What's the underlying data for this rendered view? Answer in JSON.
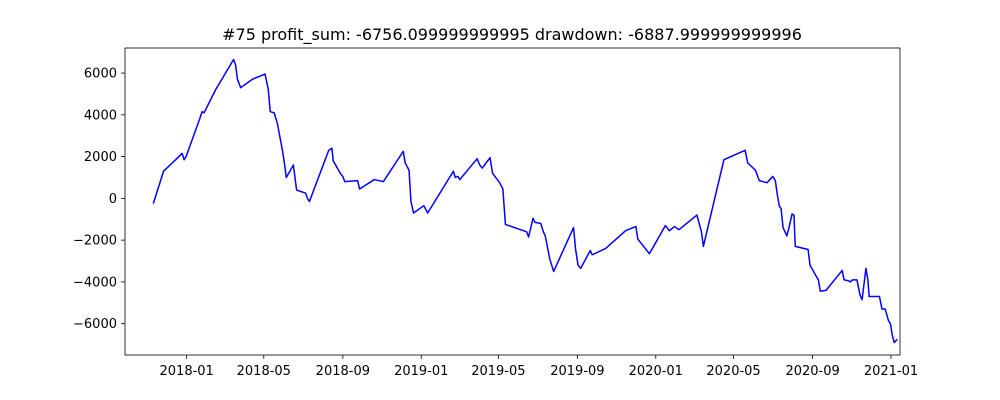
{
  "chart_data": {
    "type": "line",
    "title": "#75   profit_sum: -6756.099999999995 drawdown: -6887.999999999996",
    "xlabel": "",
    "ylabel": "",
    "xlim": [
      "2017-09-27",
      "2021-01-15"
    ],
    "ylim": [
      -7500,
      7200
    ],
    "grid": false,
    "x_ticks": [
      "2018-01",
      "2018-05",
      "2018-09",
      "2019-01",
      "2019-05",
      "2019-09",
      "2020-01",
      "2020-05",
      "2020-09",
      "2021-01"
    ],
    "y_ticks": [
      -6000,
      -4000,
      -2000,
      0,
      2000,
      4000,
      6000
    ],
    "y_tick_labels": [
      "−6000",
      "−4000",
      "−2000",
      "0",
      "2000",
      "4000",
      "6000"
    ],
    "series": [
      {
        "color": "#0000ff",
        "points": [
          [
            "2017-11-10",
            -250
          ],
          [
            "2017-11-26",
            1300
          ],
          [
            "2017-12-25",
            2150
          ],
          [
            "2017-12-28",
            1850
          ],
          [
            "2017-12-31",
            2000
          ],
          [
            "2018-01-20",
            3700
          ],
          [
            "2018-01-25",
            4150
          ],
          [
            "2018-01-28",
            4100
          ],
          [
            "2018-02-15",
            5200
          ],
          [
            "2018-03-15",
            6650
          ],
          [
            "2018-03-18",
            6400
          ],
          [
            "2018-03-21",
            5700
          ],
          [
            "2018-03-26",
            5300
          ],
          [
            "2018-04-13",
            5700
          ],
          [
            "2018-05-03",
            5950
          ],
          [
            "2018-05-08",
            5200
          ],
          [
            "2018-05-11",
            4150
          ],
          [
            "2018-05-17",
            4100
          ],
          [
            "2018-05-22",
            3600
          ],
          [
            "2018-05-30",
            2300
          ],
          [
            "2018-06-02",
            1700
          ],
          [
            "2018-06-05",
            1000
          ],
          [
            "2018-06-16",
            1600
          ],
          [
            "2018-06-21",
            400
          ],
          [
            "2018-07-05",
            250
          ],
          [
            "2018-07-08",
            0
          ],
          [
            "2018-07-11",
            -150
          ],
          [
            "2018-08-10",
            2300
          ],
          [
            "2018-08-15",
            2400
          ],
          [
            "2018-08-17",
            1800
          ],
          [
            "2018-08-28",
            1200
          ],
          [
            "2018-09-01",
            1050
          ],
          [
            "2018-09-04",
            800
          ],
          [
            "2018-09-24",
            850
          ],
          [
            "2018-09-27",
            450
          ],
          [
            "2018-10-20",
            900
          ],
          [
            "2018-11-03",
            800
          ],
          [
            "2018-12-04",
            2250
          ],
          [
            "2018-12-07",
            1700
          ],
          [
            "2018-12-13",
            1350
          ],
          [
            "2018-12-16",
            -150
          ],
          [
            "2018-12-20",
            -700
          ],
          [
            "2019-01-05",
            -350
          ],
          [
            "2019-01-11",
            -700
          ],
          [
            "2019-02-20",
            1300
          ],
          [
            "2019-02-23",
            1000
          ],
          [
            "2019-02-27",
            1050
          ],
          [
            "2019-03-02",
            900
          ],
          [
            "2019-03-29",
            1900
          ],
          [
            "2019-04-02",
            1600
          ],
          [
            "2019-04-06",
            1450
          ],
          [
            "2019-04-18",
            1950
          ],
          [
            "2019-04-22",
            1200
          ],
          [
            "2019-05-03",
            750
          ],
          [
            "2019-05-08",
            450
          ],
          [
            "2019-05-12",
            -1250
          ],
          [
            "2019-06-14",
            -1600
          ],
          [
            "2019-06-17",
            -1850
          ],
          [
            "2019-06-24",
            -950
          ],
          [
            "2019-06-27",
            -1150
          ],
          [
            "2019-07-06",
            -1200
          ],
          [
            "2019-07-10",
            -1600
          ],
          [
            "2019-07-13",
            -1800
          ],
          [
            "2019-07-20",
            -2900
          ],
          [
            "2019-07-26",
            -3500
          ],
          [
            "2019-08-26",
            -1400
          ],
          [
            "2019-08-29",
            -2400
          ],
          [
            "2019-09-02",
            -3200
          ],
          [
            "2019-09-06",
            -3350
          ],
          [
            "2019-09-21",
            -2500
          ],
          [
            "2019-09-24",
            -2700
          ],
          [
            "2019-10-15",
            -2400
          ],
          [
            "2019-11-15",
            -1550
          ],
          [
            "2019-12-01",
            -1350
          ],
          [
            "2019-12-04",
            -1950
          ],
          [
            "2019-12-22",
            -2650
          ],
          [
            "2020-01-16",
            -1300
          ],
          [
            "2020-01-22",
            -1550
          ],
          [
            "2020-01-30",
            -1350
          ],
          [
            "2020-02-06",
            -1500
          ],
          [
            "2020-03-05",
            -800
          ],
          [
            "2020-03-12",
            -1600
          ],
          [
            "2020-03-15",
            -2300
          ],
          [
            "2020-04-16",
            1850
          ],
          [
            "2020-05-19",
            2300
          ],
          [
            "2020-05-23",
            1700
          ],
          [
            "2020-06-04",
            1350
          ],
          [
            "2020-06-10",
            850
          ],
          [
            "2020-06-22",
            750
          ],
          [
            "2020-07-01",
            1050
          ],
          [
            "2020-07-05",
            850
          ],
          [
            "2020-07-08",
            200
          ],
          [
            "2020-07-11",
            -350
          ],
          [
            "2020-07-14",
            -500
          ],
          [
            "2020-07-17",
            -1400
          ],
          [
            "2020-07-23",
            -1800
          ],
          [
            "2020-07-27",
            -1300
          ],
          [
            "2020-07-31",
            -750
          ],
          [
            "2020-08-03",
            -800
          ],
          [
            "2020-08-05",
            -2300
          ],
          [
            "2020-08-25",
            -2450
          ],
          [
            "2020-08-28",
            -3200
          ],
          [
            "2020-09-07",
            -3750
          ],
          [
            "2020-09-10",
            -3900
          ],
          [
            "2020-09-13",
            -4450
          ],
          [
            "2020-09-22",
            -4400
          ],
          [
            "2020-10-17",
            -3450
          ],
          [
            "2020-10-20",
            -3900
          ],
          [
            "2020-10-27",
            -3950
          ],
          [
            "2020-10-30",
            -4000
          ],
          [
            "2020-11-02",
            -3900
          ],
          [
            "2020-11-09",
            -3900
          ],
          [
            "2020-11-14",
            -4650
          ],
          [
            "2020-11-17",
            -4850
          ],
          [
            "2020-11-23",
            -3350
          ],
          [
            "2020-11-26",
            -3900
          ],
          [
            "2020-11-28",
            -4700
          ],
          [
            "2020-12-14",
            -4700
          ],
          [
            "2020-12-18",
            -5300
          ],
          [
            "2020-12-23",
            -5300
          ],
          [
            "2020-12-28",
            -5850
          ],
          [
            "2020-12-31",
            -6000
          ],
          [
            "2021-01-03",
            -6550
          ],
          [
            "2021-01-06",
            -6900
          ],
          [
            "2021-01-11",
            -6750
          ]
        ]
      }
    ]
  }
}
